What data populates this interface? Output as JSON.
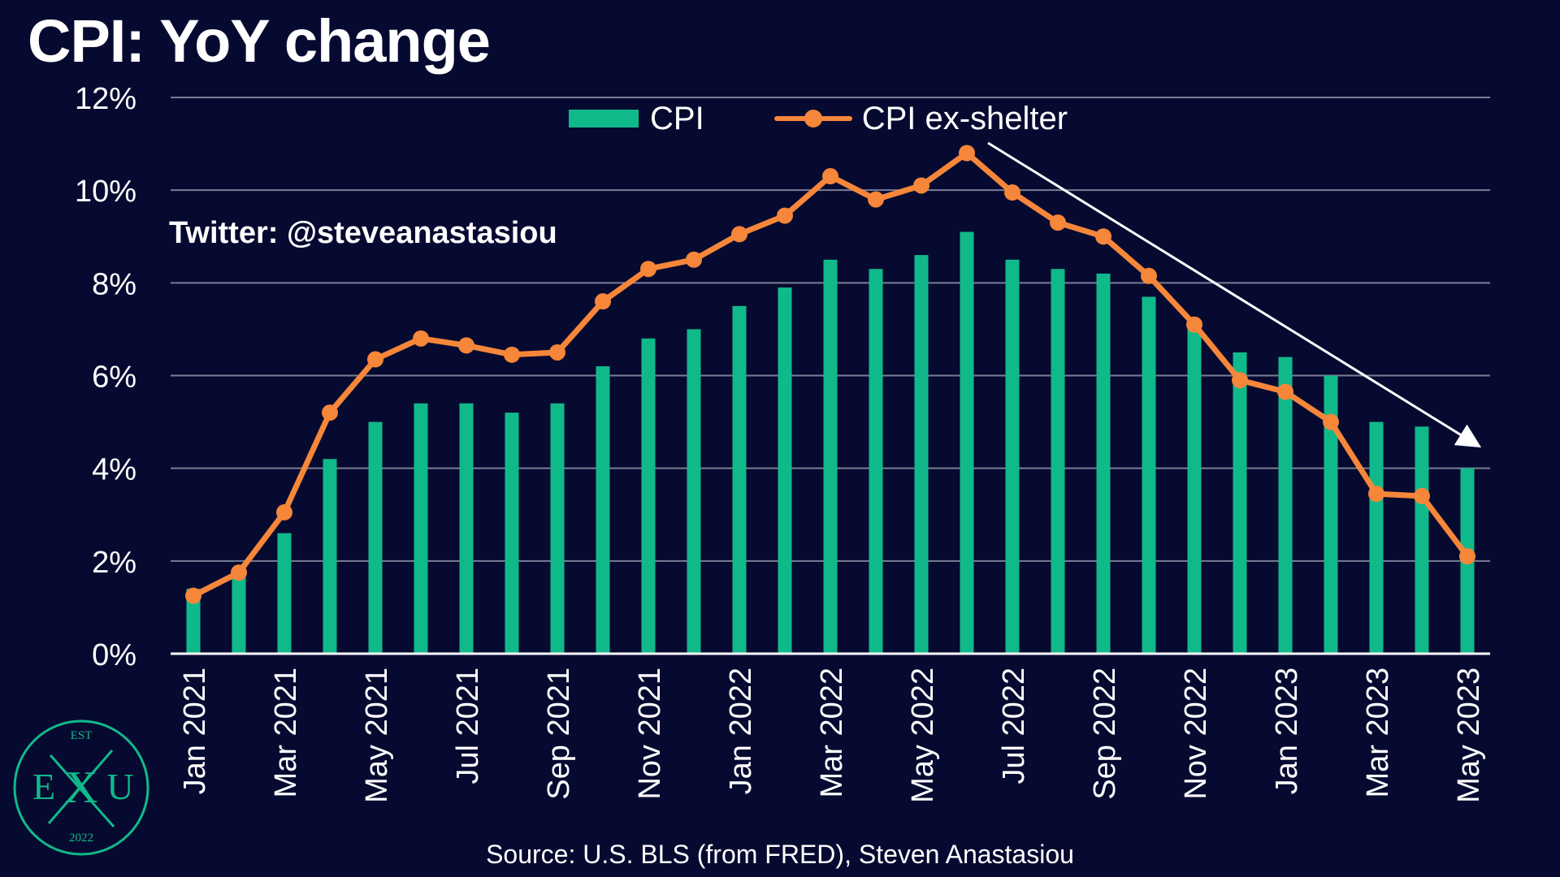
{
  "title": "CPI: YoY change",
  "watermark": "Twitter: @steveanastasiou",
  "source": "Source: U.S. BLS (from FRED), Steven Anastasiou",
  "logo": {
    "top": "EST",
    "left": "E",
    "center": "X",
    "right": "U",
    "bottom": "2022"
  },
  "colors": {
    "background": "#070a30",
    "cpi": "#10b98a",
    "cpi_ex_shelter": "#f5863a",
    "grid": "#7a7d94",
    "arrow": "#ffffff"
  },
  "chart_data": {
    "type": "bar",
    "categories": [
      "Jan 2021",
      "Feb 2021",
      "Mar 2021",
      "Apr 2021",
      "May 2021",
      "Jun 2021",
      "Jul 2021",
      "Aug 2021",
      "Sep 2021",
      "Oct 2021",
      "Nov 2021",
      "Dec 2021",
      "Jan 2022",
      "Feb 2022",
      "Mar 2022",
      "Apr 2022",
      "May 2022",
      "Jun 2022",
      "Jul 2022",
      "Aug 2022",
      "Sep 2022",
      "Oct 2022",
      "Nov 2022",
      "Dec 2022",
      "Jan 2023",
      "Feb 2023",
      "Mar 2023",
      "Apr 2023",
      "May 2023"
    ],
    "tick_labels": [
      "Jan 2021",
      "",
      "Mar 2021",
      "",
      "May 2021",
      "",
      "Jul 2021",
      "",
      "Sep 2021",
      "",
      "Nov 2021",
      "",
      "Jan 2022",
      "",
      "Mar 2022",
      "",
      "May 2022",
      "",
      "Jul 2022",
      "",
      "Sep 2022",
      "",
      "Nov 2022",
      "",
      "Jan 2023",
      "",
      "Mar 2023",
      "",
      "May 2023"
    ],
    "series": [
      {
        "name": "CPI",
        "kind": "bar",
        "values": [
          1.4,
          1.7,
          2.6,
          4.2,
          5.0,
          5.4,
          5.4,
          5.2,
          5.4,
          6.2,
          6.8,
          7.0,
          7.5,
          7.9,
          8.5,
          8.3,
          8.6,
          9.1,
          8.5,
          8.3,
          8.2,
          7.7,
          7.1,
          6.5,
          6.4,
          6.0,
          5.0,
          4.9,
          4.0
        ]
      },
      {
        "name": "CPI ex-shelter",
        "kind": "line",
        "values": [
          1.25,
          1.75,
          3.05,
          5.2,
          6.35,
          6.8,
          6.65,
          6.45,
          6.5,
          7.6,
          8.3,
          8.5,
          9.05,
          9.45,
          10.3,
          9.8,
          10.1,
          10.8,
          9.95,
          9.3,
          9.0,
          8.15,
          7.1,
          5.9,
          5.65,
          5.0,
          3.45,
          3.4,
          2.1
        ]
      }
    ],
    "ylim": [
      0,
      12
    ],
    "yticks": [
      0,
      2,
      4,
      6,
      8,
      10,
      12
    ],
    "ytick_labels": [
      "0%",
      "2%",
      "4%",
      "6%",
      "8%",
      "10%",
      "12%"
    ],
    "xlabel": "",
    "ylabel": "",
    "grid": true,
    "legend": "top-center",
    "annotation": "downward trend arrow from Jun 2022 to May 2023"
  }
}
